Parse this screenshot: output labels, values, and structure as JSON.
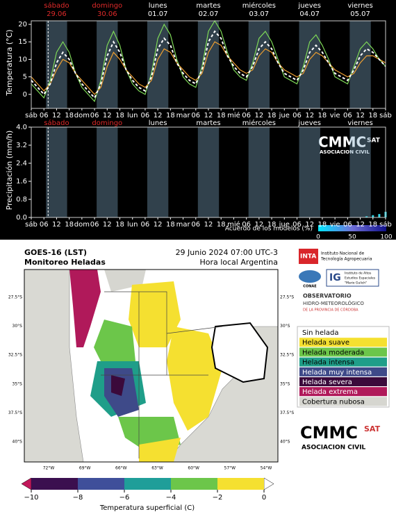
{
  "chart_data": [
    {
      "type": "line",
      "ylabel": "Temperatura (°C)",
      "xlim": [
        0,
        168
      ],
      "ylim": [
        -4,
        21
      ],
      "yticks": [
        0,
        5,
        10,
        15,
        20
      ],
      "xticks": [
        {
          "value": 0,
          "label": "sáb"
        },
        {
          "value": 6,
          "label": "06"
        },
        {
          "value": 12,
          "label": "12"
        },
        {
          "value": 18,
          "label": "18"
        },
        {
          "value": 24,
          "label": "dom"
        },
        {
          "value": 30,
          "label": "06"
        },
        {
          "value": 36,
          "label": "12"
        },
        {
          "value": 42,
          "label": "18"
        },
        {
          "value": 48,
          "label": "lun"
        },
        {
          "value": 54,
          "label": "06"
        },
        {
          "value": 60,
          "label": "12"
        },
        {
          "value": 66,
          "label": "18"
        },
        {
          "value": 72,
          "label": "mar"
        },
        {
          "value": 78,
          "label": "06"
        },
        {
          "value": 84,
          "label": "12"
        },
        {
          "value": 90,
          "label": "18"
        },
        {
          "value": 96,
          "label": "mié"
        },
        {
          "value": 102,
          "label": "06"
        },
        {
          "value": 108,
          "label": "12"
        },
        {
          "value": 114,
          "label": "18"
        },
        {
          "value": 120,
          "label": "jue"
        },
        {
          "value": 126,
          "label": "06"
        },
        {
          "value": 132,
          "label": "12"
        },
        {
          "value": 138,
          "label": "18"
        },
        {
          "value": 144,
          "label": "vie"
        },
        {
          "value": 150,
          "label": "06"
        },
        {
          "value": 156,
          "label": "12"
        },
        {
          "value": 162,
          "label": "18"
        },
        {
          "value": 168,
          "label": "sáb"
        }
      ],
      "days": [
        {
          "name": "sábado",
          "date": "29.06",
          "color": "#e02a2a"
        },
        {
          "name": "domingo",
          "date": "30.06",
          "color": "#e02a2a"
        },
        {
          "name": "lunes",
          "date": "01.07",
          "color": "#ffffff"
        },
        {
          "name": "martes",
          "date": "02.07",
          "color": "#ffffff"
        },
        {
          "name": "miércoles",
          "date": "03.07",
          "color": "#ffffff"
        },
        {
          "name": "jueves",
          "date": "04.07",
          "color": "#ffffff"
        },
        {
          "name": "viernes",
          "date": "05.07",
          "color": "#ffffff"
        }
      ],
      "x": [
        0,
        3,
        6,
        9,
        12,
        15,
        18,
        21,
        24,
        27,
        30,
        33,
        36,
        39,
        42,
        45,
        48,
        51,
        54,
        57,
        60,
        63,
        66,
        69,
        72,
        75,
        78,
        81,
        84,
        87,
        90,
        93,
        96,
        99,
        102,
        105,
        108,
        111,
        114,
        117,
        120,
        123,
        126,
        129,
        132,
        135,
        138,
        141,
        144,
        147,
        150,
        153,
        156,
        159,
        162,
        165,
        168
      ],
      "series": [
        {
          "color": "#7ed957",
          "dashed": false,
          "values": [
            3,
            1,
            -1,
            4,
            12,
            15,
            12,
            6,
            2,
            0,
            -2,
            4,
            14,
            18,
            14,
            7,
            3,
            1,
            0,
            6,
            16,
            20,
            17,
            10,
            5,
            3,
            2,
            8,
            18,
            21,
            18,
            12,
            7,
            5,
            4,
            9,
            16,
            18,
            15,
            10,
            5,
            4,
            3,
            8,
            15,
            17,
            14,
            10,
            5,
            4,
            3,
            8,
            13,
            15,
            13,
            10,
            8
          ]
        },
        {
          "color": "#f0a030",
          "dashed": false,
          "values": [
            5,
            3,
            1,
            3,
            7,
            10,
            9,
            6,
            4,
            2,
            0,
            2,
            8,
            12,
            10,
            7,
            5,
            3,
            2,
            4,
            10,
            13,
            12,
            9,
            7,
            5,
            4,
            6,
            12,
            15,
            14,
            11,
            9,
            7,
            6,
            7,
            11,
            13,
            12,
            9,
            7,
            6,
            5,
            6,
            10,
            12,
            11,
            9,
            7,
            6,
            5,
            6,
            9,
            11,
            11,
            10,
            9
          ]
        },
        {
          "color": "#ffffff",
          "dashed": true,
          "values": [
            4,
            2,
            0,
            3,
            9,
            12,
            10,
            6,
            3,
            1,
            -1,
            3,
            11,
            15,
            12,
            7,
            4,
            2,
            1,
            5,
            13,
            16,
            14,
            9,
            6,
            4,
            3,
            7,
            15,
            18,
            16,
            11,
            8,
            6,
            5,
            8,
            13,
            15,
            13,
            9,
            6,
            5,
            4,
            7,
            12,
            14,
            12,
            9,
            6,
            5,
            4,
            7,
            11,
            13,
            12,
            10,
            8
          ]
        }
      ],
      "marker_x": 8
    },
    {
      "type": "bar",
      "ylabel": "Precipitación (mm/h)",
      "xlim": [
        0,
        168
      ],
      "ylim": [
        0,
        4
      ],
      "yticks": [
        {
          "value": 0,
          "label": "0.0"
        },
        {
          "value": 0.8,
          "label": "0.8"
        },
        {
          "value": 1.6,
          "label": "1.6"
        },
        {
          "value": 2.4,
          "label": "2.4"
        },
        {
          "value": 3.2,
          "label": "3.2"
        },
        {
          "value": 4,
          "label": "4.0"
        }
      ],
      "xticks": [
        {
          "value": 0,
          "label": "sáb"
        },
        {
          "value": 6,
          "label": "06"
        },
        {
          "value": 12,
          "label": "12"
        },
        {
          "value": 18,
          "label": "18"
        },
        {
          "value": 24,
          "label": "dom"
        },
        {
          "value": 30,
          "label": "06"
        },
        {
          "value": 36,
          "label": "12"
        },
        {
          "value": 42,
          "label": "18"
        },
        {
          "value": 48,
          "label": "lun"
        },
        {
          "value": 54,
          "label": "06"
        },
        {
          "value": 60,
          "label": "12"
        },
        {
          "value": 66,
          "label": "18"
        },
        {
          "value": 72,
          "label": "mar"
        },
        {
          "value": 78,
          "label": "06"
        },
        {
          "value": 84,
          "label": "12"
        },
        {
          "value": 90,
          "label": "18"
        },
        {
          "value": 96,
          "label": "mié"
        },
        {
          "value": 102,
          "label": "06"
        },
        {
          "value": 108,
          "label": "12"
        },
        {
          "value": 114,
          "label": "18"
        },
        {
          "value": 120,
          "label": "jue"
        },
        {
          "value": 126,
          "label": "06"
        },
        {
          "value": 132,
          "label": "12"
        },
        {
          "value": 138,
          "label": "18"
        },
        {
          "value": 144,
          "label": "vie"
        },
        {
          "value": 150,
          "label": "06"
        },
        {
          "value": 156,
          "label": "12"
        },
        {
          "value": 162,
          "label": "18"
        },
        {
          "value": 168,
          "label": "sáb"
        }
      ],
      "days": [
        {
          "name": "sábado",
          "color": "#e02a2a"
        },
        {
          "name": "domingo",
          "color": "#e02a2a"
        },
        {
          "name": "lunes",
          "color": "#ffffff"
        },
        {
          "name": "martes",
          "color": "#ffffff"
        },
        {
          "name": "miércoles",
          "color": "#ffffff"
        },
        {
          "name": "jueves",
          "color": "#ffffff"
        },
        {
          "name": "viernes",
          "color": "#ffffff"
        }
      ],
      "x": [
        159,
        162,
        165,
        168
      ],
      "values": [
        0.05,
        0.1,
        0.15,
        0.25
      ],
      "color": "#30d8e8",
      "marker_x": 8,
      "colorbar": {
        "label": "Acuerdo de los modelos (%)",
        "ticks": [
          0,
          50,
          100
        ],
        "colors": [
          "#00e8ff",
          "#7070d8",
          "#10108a"
        ]
      },
      "logo": {
        "name": "CMMC",
        "sub": "ASOCIACION CIVIL",
        "tag": "SAT"
      }
    }
  ],
  "map": {
    "title": "GOES-16 (LST)",
    "subtitle": "Monitoreo Heladas",
    "date": "29 Junio 2024 07:00 UTC-3",
    "time_note": "Hora local Argentina",
    "lat_labels": [
      "27.5°S",
      "30°S",
      "32.5°S",
      "35°S",
      "37.5°S",
      "40°S"
    ],
    "lon_labels": [
      "72°W",
      "69°W",
      "66°W",
      "63°W",
      "60°W",
      "57°W",
      "54°W"
    ],
    "legend": [
      {
        "label": "Sin helada",
        "color": "#ffffff"
      },
      {
        "label": "Helada suave",
        "color": "#f5e030"
      },
      {
        "label": "Helada moderada",
        "color": "#6cc64a"
      },
      {
        "label": "Helada intensa",
        "color": "#1f9e89"
      },
      {
        "label": "Helada muy intensa",
        "color": "#3e4a89"
      },
      {
        "label": "Helada severa",
        "color": "#3b0a3b"
      },
      {
        "label": "Helada extrema",
        "color": "#b0195a"
      },
      {
        "label": "Cobertura nubosa",
        "color": "#d6d6d0"
      }
    ],
    "colorbar": {
      "label": "Temperatura superficial (C)",
      "ticks": [
        {
          "value": -10,
          "label": "−10"
        },
        {
          "value": -8,
          "label": "−8"
        },
        {
          "value": -6,
          "label": "−6"
        },
        {
          "value": -4,
          "label": "−4"
        },
        {
          "value": -2,
          "label": "−2"
        },
        {
          "value": 0,
          "label": "0"
        }
      ],
      "colors": [
        "#3b0f4f",
        "#3f4f9a",
        "#1f9e99",
        "#6cc64a",
        "#f5e030"
      ],
      "under": "#c2185b",
      "over": "#ffffff"
    },
    "logos": {
      "inta": "INTA",
      "inta_text": [
        "Instituto Nacional de",
        "Tecnología Agropecuaria"
      ],
      "conae": "CONAE",
      "ig": "IG",
      "ig_text": [
        "Instituto de Altos",
        "Estudios Espaciales",
        "\"Mario Gulich\""
      ],
      "obs": [
        "OBSERVATORIO",
        "HIDRO-METEOROLÓGICO",
        "DE LA PROVINCIA DE CÓRDOBA"
      ],
      "cmmc": {
        "name": "CMMC",
        "sub": "ASOCIACION CIVIL",
        "tag": "SAT"
      }
    }
  }
}
